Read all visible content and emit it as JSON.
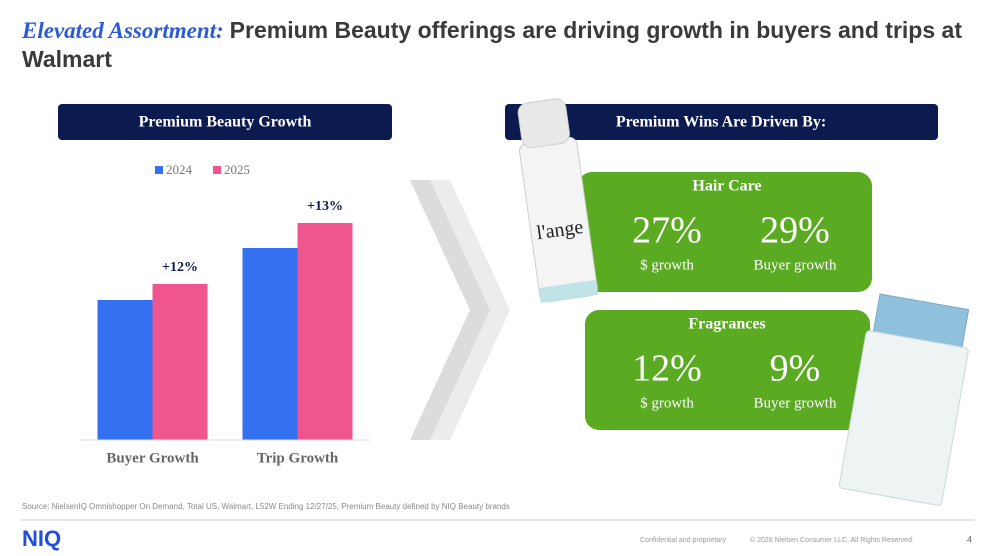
{
  "header": {
    "title_lead": "Elevated Assortment:",
    "title_rest": "Premium Beauty offerings are driving growth in buyers and trips at Walmart"
  },
  "chart_data": {
    "type": "bar",
    "title": "Premium Beauty Growth",
    "categories": [
      "Buyer Growth",
      "Trip Growth"
    ],
    "series": [
      {
        "name": "2024",
        "color": "#3471f0",
        "values": [
          140,
          192
        ]
      },
      {
        "name": "2025",
        "color": "#ef5690",
        "values": [
          156,
          217
        ]
      }
    ],
    "annotations": [
      "+12%",
      "+13%"
    ],
    "ylim": [
      0,
      250
    ],
    "grid": false,
    "legend": "top"
  },
  "drivers": {
    "title": "Premium Wins Are Driven By:",
    "sections": [
      {
        "title": "Hair Care",
        "metrics": [
          {
            "value": "27%",
            "label": "$ growth"
          },
          {
            "value": "29%",
            "label": "Buyer growth"
          }
        ]
      },
      {
        "title": "Fragrances",
        "metrics": [
          {
            "value": "12%",
            "label": "$ growth"
          },
          {
            "value": "9%",
            "label": "Buyer growth"
          }
        ]
      }
    ]
  },
  "images": {
    "spray_label": "l'ange"
  },
  "footer": {
    "source": "Source: NielsenIQ Omnishopper On Demand, Total US, Walmart, L52W Ending 12/27/25, Premium Beauty defined by NIQ Beauty brands",
    "logo": "NIQ",
    "confidential": "Confidential and proprietary",
    "copyright": "© 2026 Nielsen Consumer LLC. All Rights Reserved.",
    "page": "4"
  }
}
